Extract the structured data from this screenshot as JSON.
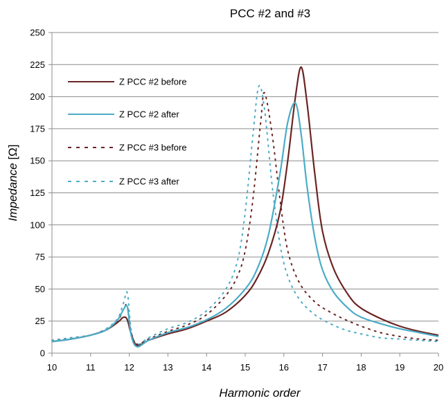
{
  "chart_data": {
    "type": "line",
    "title": "PCC #2 and #3",
    "xlabel": "Harmonic order",
    "ylabel_italic": "Impedance",
    "ylabel_unit": " [Ω]",
    "xlim": [
      10,
      20
    ],
    "ylim": [
      0,
      250
    ],
    "xticks": [
      10,
      11,
      12,
      13,
      14,
      15,
      16,
      17,
      18,
      19,
      20
    ],
    "yticks": [
      0,
      25,
      50,
      75,
      100,
      125,
      150,
      175,
      200,
      225,
      250
    ],
    "grid": "horizontal",
    "legend_position": "top-left",
    "series": [
      {
        "name": "Z PCC #2 before",
        "color": "#6b2424",
        "style": "solid",
        "x": [
          10,
          10.5,
          11,
          11.4,
          11.7,
          11.85,
          11.95,
          12.05,
          12.2,
          12.5,
          13,
          13.5,
          14,
          14.5,
          15,
          15.3,
          15.6,
          15.9,
          16.1,
          16.3,
          16.45,
          16.6,
          16.8,
          17,
          17.3,
          17.7,
          18,
          18.5,
          19,
          19.5,
          20
        ],
        "y": [
          9,
          11,
          14,
          18,
          24,
          28,
          26,
          15,
          6,
          10,
          15,
          19,
          25,
          32,
          45,
          58,
          78,
          110,
          150,
          200,
          223,
          195,
          140,
          95,
          65,
          44,
          35,
          27,
          21,
          17,
          14
        ]
      },
      {
        "name": "Z PCC #2 after",
        "color": "#4bacc6",
        "style": "solid",
        "x": [
          10,
          10.5,
          11,
          11.4,
          11.7,
          11.85,
          11.95,
          12.05,
          12.2,
          12.5,
          13,
          13.5,
          14,
          14.5,
          15,
          15.3,
          15.6,
          15.9,
          16.1,
          16.3,
          16.45,
          16.6,
          16.8,
          17,
          17.3,
          17.7,
          18,
          18.5,
          19,
          19.5,
          20
        ],
        "y": [
          9,
          11,
          14,
          18,
          26,
          34,
          36,
          14,
          5,
          10,
          16,
          20,
          26,
          35,
          50,
          65,
          92,
          140,
          180,
          195,
          170,
          130,
          90,
          65,
          47,
          34,
          28,
          23,
          19,
          16,
          13
        ]
      },
      {
        "name": "Z PCC #3 before",
        "color": "#6b2424",
        "style": "dotted",
        "x": [
          10,
          10.5,
          11,
          11.4,
          11.7,
          11.85,
          11.95,
          12.05,
          12.2,
          12.5,
          13,
          13.5,
          14,
          14.5,
          14.8,
          15,
          15.2,
          15.4,
          15.5,
          15.7,
          15.9,
          16.1,
          16.4,
          16.8,
          17.2,
          17.6,
          18,
          18.5,
          19,
          19.5,
          20
        ],
        "y": [
          10,
          12,
          14,
          18,
          25,
          34,
          37,
          16,
          7,
          11,
          17,
          22,
          30,
          45,
          60,
          80,
          120,
          180,
          203,
          170,
          120,
          80,
          55,
          40,
          32,
          26,
          21,
          16,
          13,
          11,
          10
        ]
      },
      {
        "name": "Z PCC #3 after",
        "color": "#4bacc6",
        "style": "dotted",
        "x": [
          10,
          10.5,
          11,
          11.4,
          11.7,
          11.85,
          11.95,
          12.05,
          12.2,
          12.5,
          13,
          13.5,
          14,
          14.5,
          14.8,
          15,
          15.2,
          15.35,
          15.5,
          15.7,
          15.9,
          16.1,
          16.4,
          16.8,
          17.2,
          17.6,
          18,
          18.5,
          19,
          19.5,
          20
        ],
        "y": [
          10,
          12,
          14,
          19,
          27,
          39,
          47,
          18,
          7,
          12,
          19,
          24,
          33,
          50,
          72,
          110,
          170,
          208,
          190,
          130,
          85,
          60,
          42,
          30,
          23,
          18,
          15,
          12,
          11,
          10,
          9
        ]
      }
    ]
  }
}
